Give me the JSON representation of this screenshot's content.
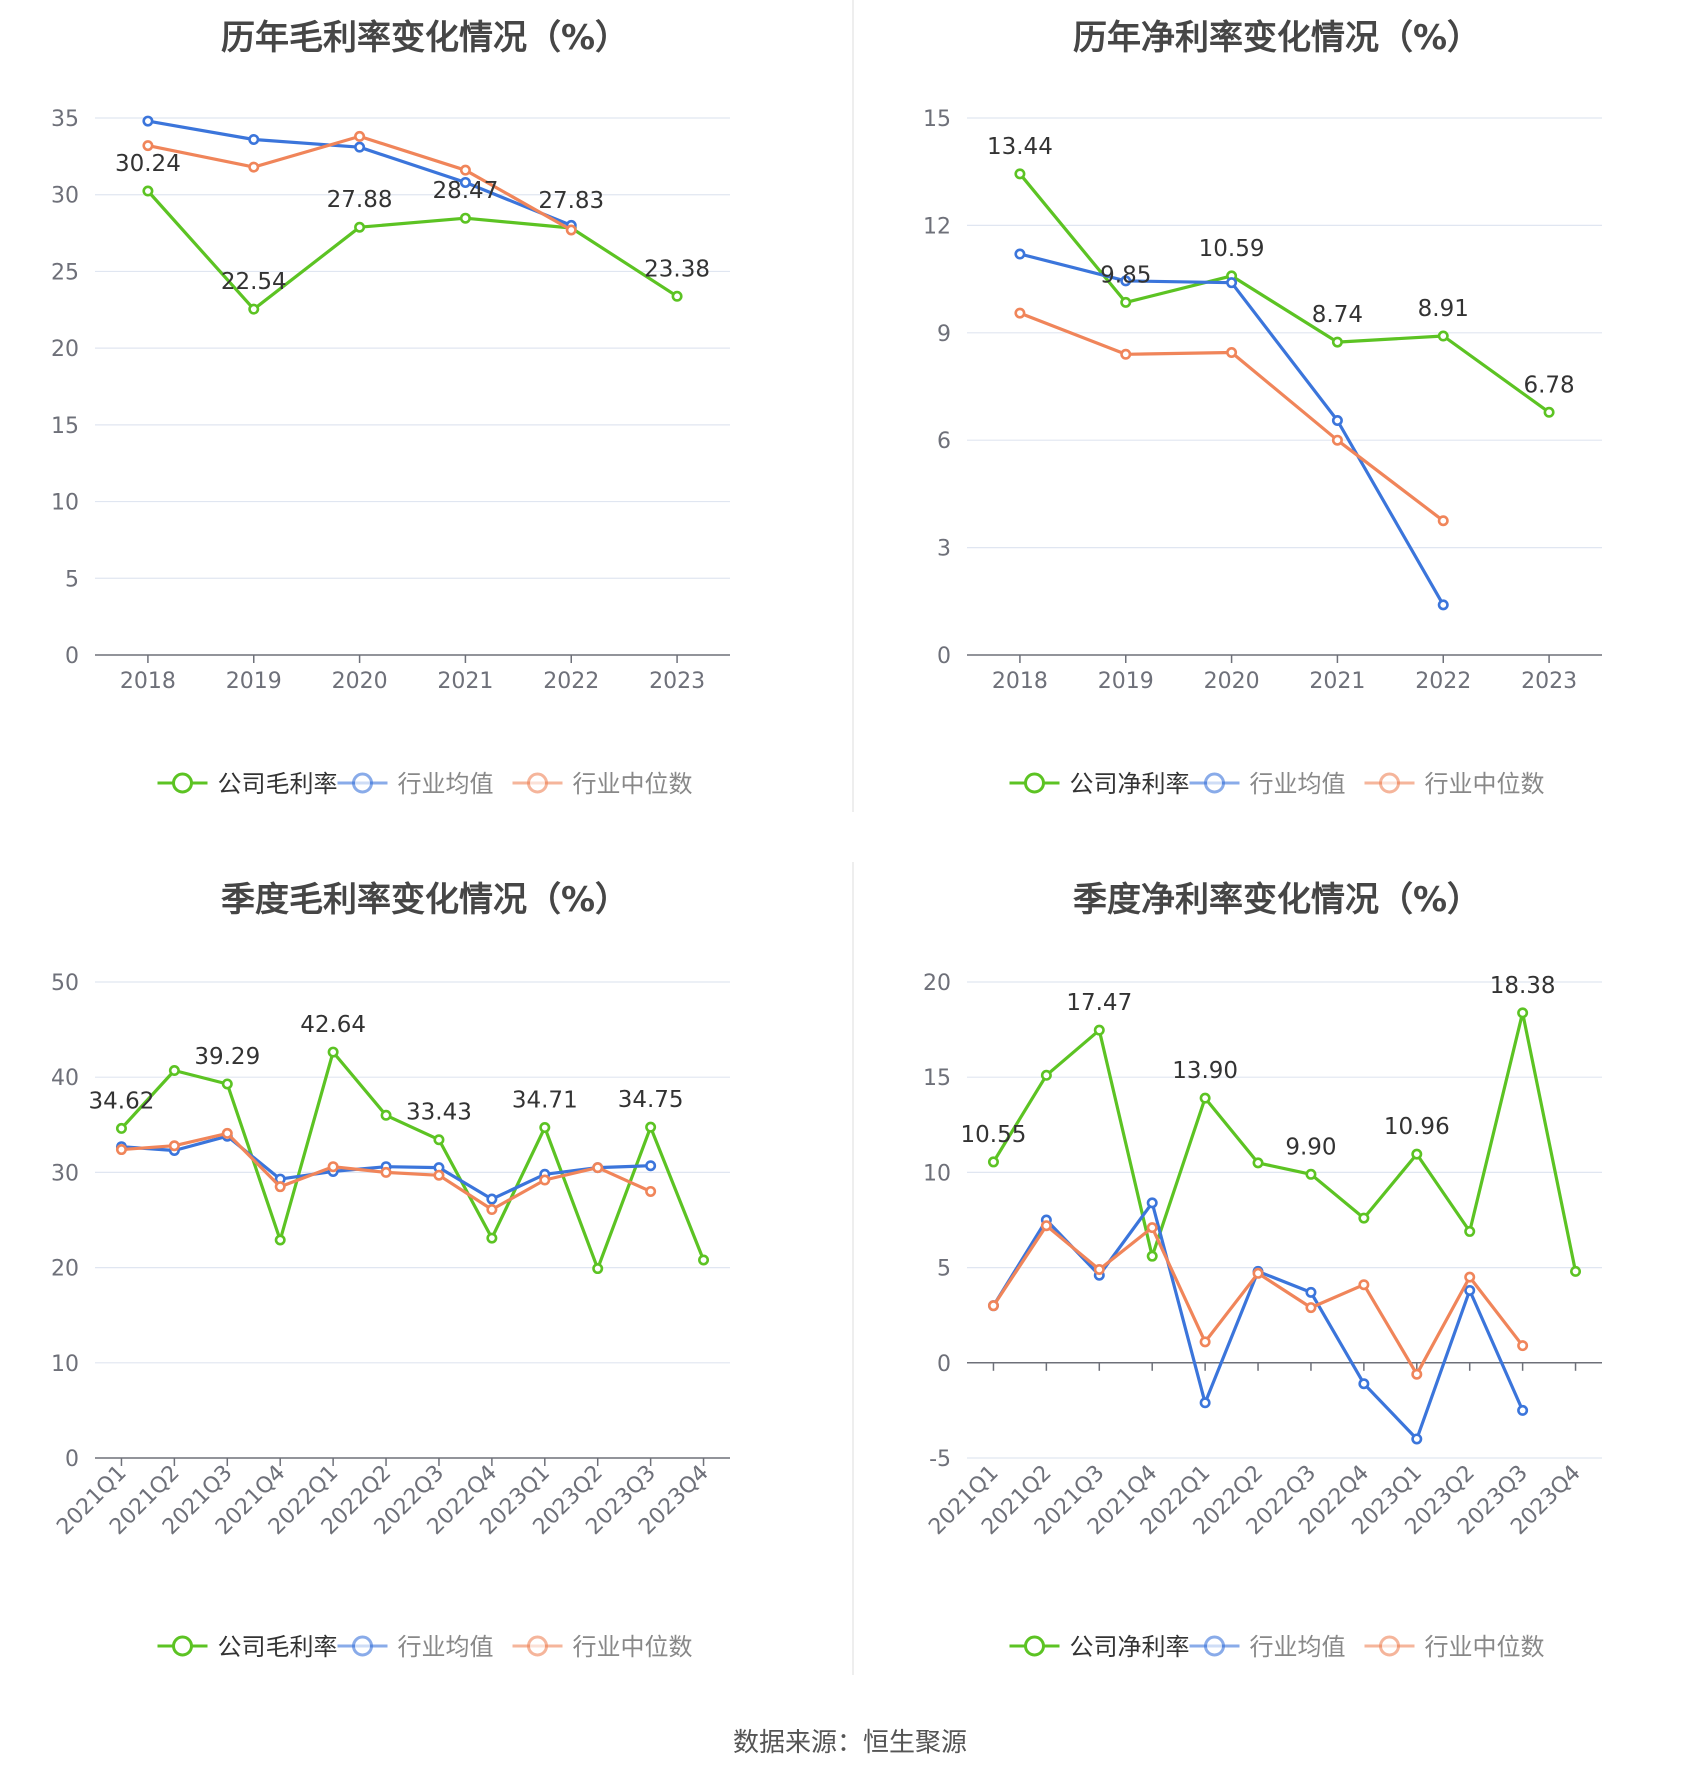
{
  "source": "数据来源：恒生聚源",
  "colors": {
    "company": "#5cc323",
    "industry_avg": "#3b75db",
    "industry_median": "#f0855a",
    "grid": "#e0e6f1",
    "axis": "#6e7079",
    "divider": "#e8e8e8"
  },
  "chart_data": [
    {
      "type": "line",
      "title": "历年毛利率变化情况（%）",
      "categories": [
        "2018",
        "2019",
        "2020",
        "2021",
        "2022",
        "2023"
      ],
      "ylim": [
        0,
        35
      ],
      "yticks": [
        0,
        5,
        10,
        15,
        20,
        25,
        30,
        35
      ],
      "x_rotate": false,
      "grid": true,
      "legend_position": "bottom",
      "series": [
        {
          "name": "公司毛利率",
          "role": "company",
          "values": [
            30.24,
            22.54,
            27.88,
            28.47,
            27.83,
            23.38
          ],
          "labels": [
            "30.24",
            "22.54",
            "27.88",
            "28.47",
            "27.83",
            "23.38"
          ]
        },
        {
          "name": "行业均值",
          "role": "industry_avg",
          "values": [
            34.8,
            33.6,
            33.1,
            30.8,
            28.0,
            null
          ]
        },
        {
          "name": "行业中位数",
          "role": "industry_median",
          "values": [
            33.2,
            31.8,
            33.8,
            31.6,
            27.7,
            null
          ]
        }
      ]
    },
    {
      "type": "line",
      "title": "历年净利率变化情况（%）",
      "categories": [
        "2018",
        "2019",
        "2020",
        "2021",
        "2022",
        "2023"
      ],
      "ylim": [
        0,
        15
      ],
      "yticks": [
        0,
        3,
        6,
        9,
        12,
        15
      ],
      "x_rotate": false,
      "grid": true,
      "legend_position": "bottom",
      "series": [
        {
          "name": "公司净利率",
          "role": "company",
          "values": [
            13.44,
            9.85,
            10.59,
            8.74,
            8.91,
            6.78
          ],
          "labels": [
            "13.44",
            "9.85",
            "10.59",
            "8.74",
            "8.91",
            "6.78"
          ]
        },
        {
          "name": "行业均值",
          "role": "industry_avg",
          "values": [
            11.2,
            10.45,
            10.4,
            6.55,
            1.4,
            null
          ]
        },
        {
          "name": "行业中位数",
          "role": "industry_median",
          "values": [
            9.55,
            8.4,
            8.45,
            6.0,
            3.75,
            null
          ]
        }
      ]
    },
    {
      "type": "line",
      "title": "季度毛利率变化情况（%）",
      "categories": [
        "2021Q1",
        "2021Q2",
        "2021Q3",
        "2021Q4",
        "2022Q1",
        "2022Q2",
        "2022Q3",
        "2022Q4",
        "2023Q1",
        "2023Q2",
        "2023Q3",
        "2023Q4"
      ],
      "ylim": [
        0,
        50
      ],
      "yticks": [
        0,
        10,
        20,
        30,
        40,
        50
      ],
      "x_rotate": true,
      "grid": true,
      "legend_position": "bottom",
      "series": [
        {
          "name": "公司毛利率",
          "role": "company",
          "values": [
            34.62,
            40.7,
            39.29,
            22.9,
            42.64,
            36.0,
            33.43,
            23.1,
            34.71,
            19.9,
            34.75,
            20.8
          ],
          "labels": [
            "34.62",
            "",
            "39.29",
            "",
            "42.64",
            "",
            "33.43",
            "",
            "34.71",
            "",
            "34.75",
            ""
          ]
        },
        {
          "name": "行业均值",
          "role": "industry_avg",
          "values": [
            32.7,
            32.3,
            33.8,
            29.3,
            30.1,
            30.6,
            30.5,
            27.2,
            29.8,
            30.5,
            30.7,
            null
          ]
        },
        {
          "name": "行业中位数",
          "role": "industry_median",
          "values": [
            32.4,
            32.8,
            34.1,
            28.5,
            30.6,
            30.0,
            29.7,
            26.1,
            29.2,
            30.5,
            28.0,
            null
          ]
        }
      ]
    },
    {
      "type": "line",
      "title": "季度净利率变化情况（%）",
      "categories": [
        "2021Q1",
        "2021Q2",
        "2021Q3",
        "2021Q4",
        "2022Q1",
        "2022Q2",
        "2022Q3",
        "2022Q4",
        "2023Q1",
        "2023Q2",
        "2023Q3",
        "2023Q4"
      ],
      "ylim": [
        -5,
        20
      ],
      "yticks": [
        -5,
        0,
        5,
        10,
        15,
        20
      ],
      "x_rotate": true,
      "grid": true,
      "legend_position": "bottom",
      "series": [
        {
          "name": "公司净利率",
          "role": "company",
          "values": [
            10.55,
            15.1,
            17.47,
            5.6,
            13.9,
            10.5,
            9.9,
            7.6,
            10.96,
            6.9,
            18.38,
            4.8
          ],
          "labels": [
            "10.55",
            "",
            "17.47",
            "",
            "13.90",
            "",
            "9.90",
            "",
            "10.96",
            "",
            "18.38",
            ""
          ]
        },
        {
          "name": "行业均值",
          "role": "industry_avg",
          "values": [
            3.0,
            7.5,
            4.6,
            8.4,
            -2.1,
            4.8,
            3.7,
            -1.1,
            -4.0,
            3.8,
            -2.5,
            null
          ]
        },
        {
          "name": "行业中位数",
          "role": "industry_median",
          "values": [
            3.0,
            7.2,
            4.9,
            7.1,
            1.1,
            4.7,
            2.9,
            4.1,
            -0.6,
            4.5,
            0.9,
            null
          ]
        }
      ]
    }
  ]
}
